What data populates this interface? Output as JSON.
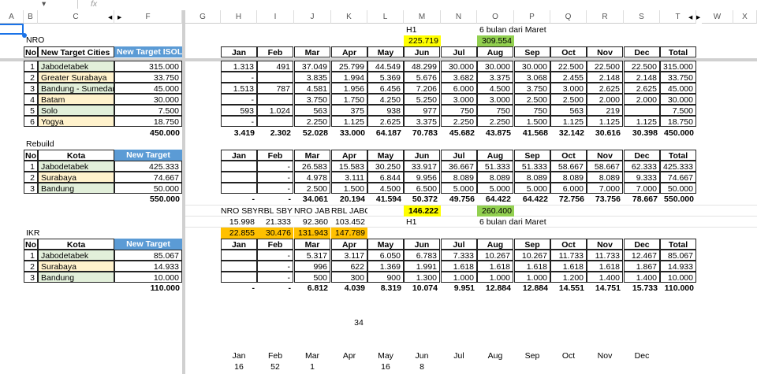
{
  "formula_bar": {
    "fx_label": "fx",
    "name_box_arrow": "▾"
  },
  "columns": [
    "A",
    "B",
    "C",
    "F",
    "G",
    "H",
    "I",
    "J",
    "K",
    "L",
    "M",
    "N",
    "O",
    "P",
    "Q",
    "R",
    "S",
    "T",
    "W",
    "X"
  ],
  "months": [
    "Jan",
    "Feb",
    "Mar",
    "Apr",
    "May",
    "Jun",
    "Jul",
    "Aug",
    "Sep",
    "Oct",
    "Nov",
    "Dec",
    "Total"
  ],
  "colors": {
    "header_blue": "#5b9bd5",
    "city_green": "#e2efda",
    "city_cream": "#fff2cc",
    "h1_yellow": "#ffff00",
    "march_green": "#92d050",
    "summary_orange": "#ffc000"
  },
  "nro": {
    "label": "NRO",
    "headers": [
      "No",
      "New Target Cities",
      "New Target ISOL"
    ],
    "h1_label": "H1",
    "h1_value": "225.719",
    "six_label": "6 bulan dari Maret",
    "six_value": "309.554",
    "rows": [
      {
        "no": "1",
        "city": "Jabodetabek",
        "target": "315.000",
        "m": [
          "1.313",
          "491",
          "37.049",
          "25.799",
          "44.549",
          "48.299",
          "30.000",
          "30.000",
          "30.000",
          "22.500",
          "22.500",
          "22.500",
          "315.000"
        ]
      },
      {
        "no": "2",
        "city": "Greater Surabaya",
        "target": "33.750",
        "m": [
          "-",
          "",
          "3.835",
          "1.994",
          "5.369",
          "5.676",
          "3.682",
          "3.375",
          "3.068",
          "2.455",
          "2.148",
          "2.148",
          "33.750"
        ]
      },
      {
        "no": "3",
        "city": "Bandung - Sumedang",
        "target": "45.000",
        "m": [
          "1.513",
          "787",
          "4.581",
          "1.956",
          "6.456",
          "7.206",
          "6.000",
          "4.500",
          "3.750",
          "3.000",
          "2.625",
          "2.625",
          "45.000"
        ]
      },
      {
        "no": "4",
        "city": "Batam",
        "target": "30.000",
        "m": [
          "-",
          "",
          "3.750",
          "1.750",
          "4.250",
          "5.250",
          "3.000",
          "3.000",
          "2.500",
          "2.500",
          "2.000",
          "2.000",
          "30.000"
        ]
      },
      {
        "no": "5",
        "city": "Solo",
        "target": "7.500",
        "m": [
          "593",
          "1.024",
          "563",
          "375",
          "938",
          "977",
          "750",
          "750",
          "750",
          "563",
          "219",
          "",
          "7.500"
        ]
      },
      {
        "no": "6",
        "city": "Yogya",
        "target": "18.750",
        "m": [
          "-",
          "",
          "2.250",
          "1.125",
          "2.625",
          "3.375",
          "2.250",
          "2.250",
          "1.500",
          "1.125",
          "1.125",
          "1.125",
          "18.750"
        ]
      }
    ],
    "total": {
      "target": "450.000",
      "m": [
        "3.419",
        "2.302",
        "52.028",
        "33.000",
        "64.187",
        "70.783",
        "45.682",
        "43.875",
        "41.568",
        "32.142",
        "30.616",
        "30.398",
        "450.000"
      ]
    }
  },
  "rebuild": {
    "label": "Rebuild",
    "headers": [
      "No",
      "Kota",
      "New Target"
    ],
    "h1_label": "H1",
    "h1_value": "146.222",
    "six_label": "6 bulan dari Maret",
    "six_value": "260.400",
    "rows": [
      {
        "no": "1",
        "city": "Jabodetabek",
        "target": "425.333",
        "m": [
          "",
          "-",
          "26.583",
          "15.583",
          "30.250",
          "33.917",
          "36.667",
          "51.333",
          "51.333",
          "58.667",
          "58.667",
          "62.333",
          "425.333"
        ]
      },
      {
        "no": "2",
        "city": "Surabaya",
        "target": "74.667",
        "m": [
          "",
          "-",
          "4.978",
          "3.111",
          "6.844",
          "9.956",
          "8.089",
          "8.089",
          "8.089",
          "8.089",
          "8.089",
          "9.333",
          "74.667"
        ]
      },
      {
        "no": "3",
        "city": "Bandung",
        "target": "50.000",
        "m": [
          "",
          "-",
          "2.500",
          "1.500",
          "4.500",
          "6.500",
          "5.000",
          "5.000",
          "5.000",
          "6.000",
          "7.000",
          "7.000",
          "50.000"
        ]
      }
    ],
    "total": {
      "target": "550.000",
      "m": [
        "-",
        "-",
        "34.061",
        "20.194",
        "41.594",
        "50.372",
        "49.756",
        "64.422",
        "64.422",
        "72.756",
        "73.756",
        "78.667",
        "550.000"
      ]
    }
  },
  "summary": {
    "labels": [
      "NRO SBY",
      "RBL SBY",
      "NRO JABO",
      "RBL JABO"
    ],
    "values": [
      "15.998",
      "21.333",
      "92.360",
      "103.452"
    ],
    "highlighted": [
      "22.855",
      "30.476",
      "131.943",
      "147.789"
    ]
  },
  "ikr": {
    "label": "IKR",
    "headers": [
      "No",
      "Kota",
      "New Target"
    ],
    "rows": [
      {
        "no": "1",
        "city": "Jabodetabek",
        "target": "85.067",
        "m": [
          "",
          "-",
          "5.317",
          "3.117",
          "6.050",
          "6.783",
          "7.333",
          "10.267",
          "10.267",
          "11.733",
          "11.733",
          "12.467",
          "85.067"
        ]
      },
      {
        "no": "2",
        "city": "Surabaya",
        "target": "14.933",
        "m": [
          "",
          "-",
          "996",
          "622",
          "1.369",
          "1.991",
          "1.618",
          "1.618",
          "1.618",
          "1.618",
          "1.618",
          "1.867",
          "14.933"
        ]
      },
      {
        "no": "3",
        "city": "Bandung",
        "target": "10.000",
        "m": [
          "",
          "-",
          "500",
          "300",
          "900",
          "1.300",
          "1.000",
          "1.000",
          "1.000",
          "1.200",
          "1.400",
          "1.400",
          "10.000"
        ]
      }
    ],
    "total": {
      "target": "110.000",
      "m": [
        "-",
        "-",
        "6.812",
        "4.039",
        "8.319",
        "10.074",
        "9.951",
        "12.884",
        "12.884",
        "14.551",
        "14.751",
        "15.733",
        "110.000"
      ]
    }
  },
  "extra": {
    "lone_value": "34",
    "bottom_months": [
      "Jan",
      "Feb",
      "Mar",
      "Apr",
      "May",
      "Jun",
      "Jul",
      "Aug",
      "Sep",
      "Oct",
      "Nov",
      "Dec"
    ],
    "bottom_values": [
      "16",
      "52",
      "1",
      "",
      "16",
      "8",
      "",
      "",
      "",
      "",
      "",
      ""
    ]
  }
}
